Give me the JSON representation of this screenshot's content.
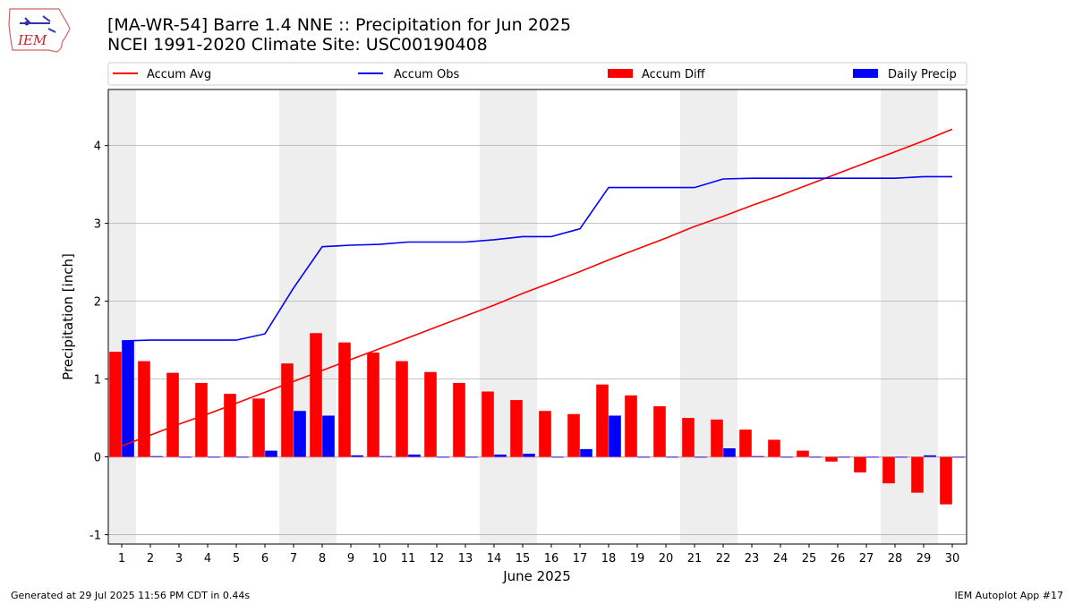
{
  "header": {
    "title_line1": "[MA-WR-54] Barre 1.4 NNE :: Precipitation for Jun 2025",
    "title_line2": "NCEI 1991-2020 Climate Site: USC00190408"
  },
  "logo": {
    "text": "IEM",
    "icon": "iowa-state-logo"
  },
  "footer": {
    "left": "Generated at 29 Jul 2025 11:56 PM CDT in 0.44s",
    "right": "IEM Autoplot App #17"
  },
  "colors": {
    "avg": "#ff0000",
    "obs": "#0000ff",
    "diff": "#ff0000",
    "daily": "#0000ff",
    "weekend_shade": "#eeeeee",
    "grid": "#b0b0b0"
  },
  "chart_data": {
    "type": "bar",
    "xlabel": "June 2025",
    "ylabel": "Precipitation [inch]",
    "ylim": [
      -1.12,
      4.72
    ],
    "yticks": [
      -1,
      0,
      1,
      2,
      3,
      4
    ],
    "grid": "horizontal",
    "legend": {
      "placement": "top",
      "entries": [
        "Accum Avg",
        "Accum Obs",
        "Accum Diff",
        "Daily Precip"
      ]
    },
    "weekend_days": [
      1,
      7,
      8,
      14,
      15,
      21,
      22,
      28,
      29
    ],
    "days": [
      1,
      2,
      3,
      4,
      5,
      6,
      7,
      8,
      9,
      10,
      11,
      12,
      13,
      14,
      15,
      16,
      17,
      18,
      19,
      20,
      21,
      22,
      23,
      24,
      25,
      26,
      27,
      28,
      29,
      30
    ],
    "series": [
      {
        "name": "Accum Avg",
        "type": "line",
        "values": [
          0.14,
          0.28,
          0.42,
          0.55,
          0.69,
          0.83,
          0.97,
          1.11,
          1.25,
          1.39,
          1.53,
          1.67,
          1.81,
          1.95,
          2.1,
          2.24,
          2.38,
          2.53,
          2.67,
          2.81,
          2.96,
          3.09,
          3.23,
          3.36,
          3.5,
          3.64,
          3.78,
          3.92,
          4.06,
          4.21
        ]
      },
      {
        "name": "Accum Obs",
        "type": "line",
        "values": [
          1.49,
          1.5,
          1.5,
          1.5,
          1.5,
          1.58,
          2.17,
          2.7,
          2.72,
          2.73,
          2.76,
          2.76,
          2.76,
          2.79,
          2.83,
          2.83,
          2.93,
          3.46,
          3.46,
          3.46,
          3.46,
          3.57,
          3.58,
          3.58,
          3.58,
          3.58,
          3.58,
          3.58,
          3.6,
          3.6
        ]
      },
      {
        "name": "Accum Diff",
        "type": "bar",
        "values": [
          1.35,
          1.23,
          1.08,
          0.95,
          0.81,
          0.75,
          1.2,
          1.59,
          1.47,
          1.34,
          1.23,
          1.09,
          0.95,
          0.84,
          0.73,
          0.59,
          0.55,
          0.93,
          0.79,
          0.65,
          0.5,
          0.48,
          0.35,
          0.22,
          0.08,
          -0.06,
          -0.2,
          -0.34,
          -0.46,
          -0.61
        ]
      },
      {
        "name": "Daily Precip",
        "type": "bar",
        "values": [
          1.49,
          0.01,
          0,
          0,
          0,
          0.08,
          0.59,
          0.53,
          0.02,
          0.01,
          0.03,
          0,
          0,
          0.03,
          0.04,
          0,
          0.1,
          0.53,
          0,
          0,
          0,
          0.11,
          0.01,
          0,
          0,
          0,
          0,
          0,
          0.02,
          0
        ]
      }
    ]
  }
}
